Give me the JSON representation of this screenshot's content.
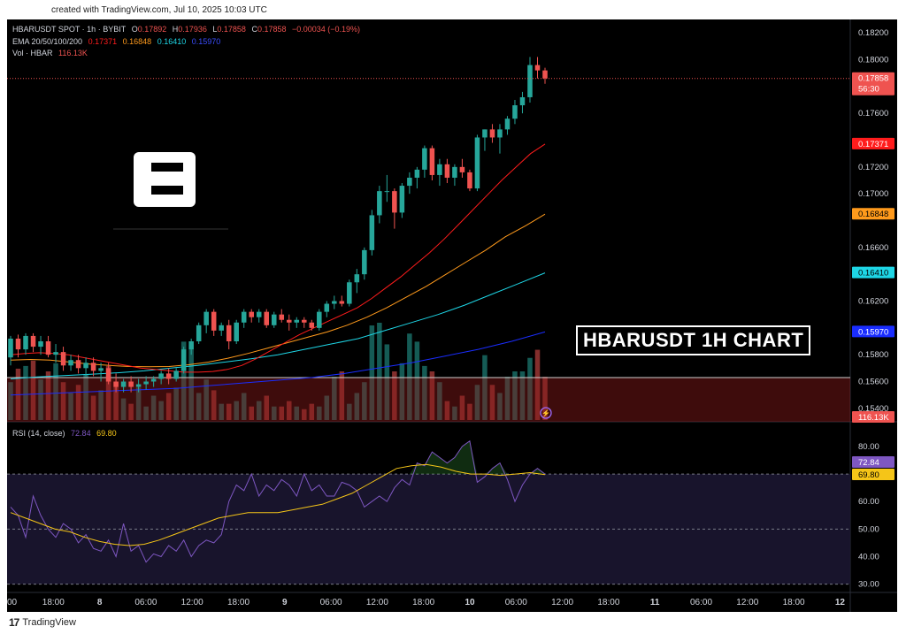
{
  "header": {
    "created_note": "created with TradingView.com, Jul 10, 2025 10:03 UTC"
  },
  "footer": {
    "brand": "TradingView"
  },
  "overlay_title": "HBARUSDT 1H CHART",
  "legend": {
    "symbol": "HBARUSDT SPOT · 1h · BYBIT",
    "o_label": "O",
    "o": "0.17892",
    "h_label": "H",
    "h": "0.17936",
    "l_label": "L",
    "l": "0.17858",
    "c_label": "C",
    "c": "0.17858",
    "change": "−0.00034 (−0.19%)",
    "ema_label": "EMA 20/50/100/200",
    "ema20": "0.17371",
    "ema50": "0.16848",
    "ema100": "0.16410",
    "ema200": "0.15970",
    "vol_label": "Vol · HBAR",
    "vol": "116.13K",
    "rsi_label": "RSI (14, close)",
    "rsi": "72.84",
    "rsi_ma": "69.80"
  },
  "price_axis": {
    "ticks": [
      "0.18200",
      "0.18000",
      "0.17600",
      "0.17200",
      "0.17000",
      "0.16600",
      "0.16200",
      "0.15800",
      "0.15600",
      "0.15400"
    ],
    "last_price_tag": "0.17858",
    "countdown": "56:30",
    "ema_tags": [
      {
        "text": "0.17371",
        "color": "#ff1c1c"
      },
      {
        "text": "0.16848",
        "color": "#ff9a1c"
      },
      {
        "text": "0.16410",
        "color": "#1ed6e6"
      },
      {
        "text": "0.15970",
        "color": "#1a2dff"
      }
    ],
    "vol_tag": "116.13K"
  },
  "rsi_axis": {
    "ticks": [
      "80.00",
      "60.00",
      "50.00",
      "40.00",
      "30.00"
    ],
    "rsi_tag": "72.84",
    "rsi_ma_tag": "69.80"
  },
  "time_axis": {
    "labels": [
      "00",
      "18:00",
      "8",
      "06:00",
      "12:00",
      "18:00",
      "9",
      "06:00",
      "12:00",
      "18:00",
      "10",
      "06:00",
      "12:00",
      "18:00",
      "11",
      "06:00",
      "12:00",
      "18:00",
      "12"
    ]
  },
  "colors": {
    "up": "#26a69a",
    "down": "#ef5350",
    "ema20": "#ff1c1c",
    "ema50": "#ff9a1c",
    "ema100": "#1ed6e6",
    "ema200": "#1a2dff",
    "rsi": "#7e57c2",
    "rsi_ma": "#f5c518"
  },
  "chart_data": {
    "type": "candlestick",
    "title": "HBARUSDT 1H CHART",
    "ylim": [
      0.153,
      0.183
    ],
    "candles": [
      [
        0.1578,
        0.1594,
        0.1572,
        0.1592
      ],
      [
        0.1592,
        0.1595,
        0.1578,
        0.1584
      ],
      [
        0.1584,
        0.1596,
        0.158,
        0.1594
      ],
      [
        0.1594,
        0.1596,
        0.1582,
        0.1586
      ],
      [
        0.1586,
        0.1594,
        0.158,
        0.159
      ],
      [
        0.159,
        0.1594,
        0.1578,
        0.158
      ],
      [
        0.158,
        0.1588,
        0.1574,
        0.1582
      ],
      [
        0.1582,
        0.1586,
        0.1568,
        0.1572
      ],
      [
        0.1572,
        0.158,
        0.1568,
        0.1576
      ],
      [
        0.1576,
        0.158,
        0.1566,
        0.157
      ],
      [
        0.157,
        0.1578,
        0.1564,
        0.1574
      ],
      [
        0.1574,
        0.1578,
        0.1564,
        0.1568
      ],
      [
        0.1568,
        0.1574,
        0.156,
        0.157
      ],
      [
        0.157,
        0.1574,
        0.1558,
        0.156
      ],
      [
        0.156,
        0.1566,
        0.1552,
        0.1556
      ],
      [
        0.1556,
        0.1562,
        0.1552,
        0.156
      ],
      [
        0.156,
        0.1564,
        0.1552,
        0.1556
      ],
      [
        0.1556,
        0.1562,
        0.1552,
        0.1558
      ],
      [
        0.1558,
        0.1564,
        0.1554,
        0.156
      ],
      [
        0.156,
        0.1564,
        0.1556,
        0.1562
      ],
      [
        0.1562,
        0.1568,
        0.1558,
        0.1566
      ],
      [
        0.1566,
        0.157,
        0.1558,
        0.1562
      ],
      [
        0.1562,
        0.157,
        0.156,
        0.1568
      ],
      [
        0.1568,
        0.1586,
        0.1566,
        0.1584
      ],
      [
        0.1584,
        0.1592,
        0.158,
        0.159
      ],
      [
        0.159,
        0.1604,
        0.1588,
        0.1602
      ],
      [
        0.1602,
        0.1614,
        0.1596,
        0.1612
      ],
      [
        0.1612,
        0.1614,
        0.1594,
        0.1598
      ],
      [
        0.1598,
        0.1604,
        0.1594,
        0.1602
      ],
      [
        0.1602,
        0.1606,
        0.1584,
        0.159
      ],
      [
        0.159,
        0.1606,
        0.1588,
        0.1604
      ],
      [
        0.1604,
        0.1614,
        0.16,
        0.1612
      ],
      [
        0.1612,
        0.1614,
        0.1604,
        0.1608
      ],
      [
        0.1608,
        0.1614,
        0.1604,
        0.1612
      ],
      [
        0.1612,
        0.1614,
        0.16,
        0.1602
      ],
      [
        0.1602,
        0.1612,
        0.16,
        0.161
      ],
      [
        0.161,
        0.1614,
        0.1604,
        0.1606
      ],
      [
        0.1606,
        0.161,
        0.1598,
        0.1604
      ],
      [
        0.1604,
        0.1608,
        0.16,
        0.1606
      ],
      [
        0.1606,
        0.1608,
        0.16,
        0.1604
      ],
      [
        0.1604,
        0.1606,
        0.1598,
        0.16
      ],
      [
        0.16,
        0.1614,
        0.1598,
        0.1612
      ],
      [
        0.1612,
        0.162,
        0.1608,
        0.1618
      ],
      [
        0.1618,
        0.1624,
        0.1614,
        0.162
      ],
      [
        0.162,
        0.1624,
        0.1616,
        0.1618
      ],
      [
        0.1618,
        0.1636,
        0.1616,
        0.1634
      ],
      [
        0.1634,
        0.1644,
        0.1626,
        0.164
      ],
      [
        0.164,
        0.166,
        0.1636,
        0.1658
      ],
      [
        0.1658,
        0.1688,
        0.1654,
        0.1684
      ],
      [
        0.1684,
        0.1706,
        0.1678,
        0.1702
      ],
      [
        0.1702,
        0.1714,
        0.1694,
        0.1702
      ],
      [
        0.1702,
        0.1704,
        0.1674,
        0.1686
      ],
      [
        0.1686,
        0.1708,
        0.1682,
        0.1706
      ],
      [
        0.1706,
        0.1716,
        0.17,
        0.1712
      ],
      [
        0.1712,
        0.172,
        0.1704,
        0.1718
      ],
      [
        0.1718,
        0.1736,
        0.1712,
        0.1734
      ],
      [
        0.1734,
        0.1736,
        0.171,
        0.1714
      ],
      [
        0.1714,
        0.1726,
        0.1706,
        0.1722
      ],
      [
        0.1722,
        0.1726,
        0.1708,
        0.1712
      ],
      [
        0.1712,
        0.1722,
        0.1706,
        0.172
      ],
      [
        0.172,
        0.1726,
        0.1712,
        0.1716
      ],
      [
        0.1716,
        0.1718,
        0.1702,
        0.1704
      ],
      [
        0.1704,
        0.1744,
        0.1702,
        0.1742
      ],
      [
        0.1742,
        0.1748,
        0.1732,
        0.1748
      ],
      [
        0.1748,
        0.1752,
        0.1738,
        0.1742
      ],
      [
        0.1742,
        0.1752,
        0.173,
        0.1748
      ],
      [
        0.1748,
        0.1758,
        0.1744,
        0.1756
      ],
      [
        0.1756,
        0.177,
        0.1752,
        0.1766
      ],
      [
        0.1766,
        0.1776,
        0.176,
        0.1772
      ],
      [
        0.1772,
        0.1802,
        0.1768,
        0.1796
      ],
      [
        0.1796,
        0.1802,
        0.1786,
        0.1792
      ],
      [
        0.1792,
        0.1794,
        0.1782,
        0.1786
      ]
    ],
    "volume": [
      28,
      38,
      40,
      44,
      30,
      36,
      42,
      28,
      20,
      26,
      34,
      18,
      22,
      40,
      28,
      16,
      12,
      24,
      10,
      18,
      14,
      20,
      24,
      58,
      56,
      20,
      30,
      22,
      12,
      12,
      14,
      20,
      10,
      14,
      18,
      10,
      10,
      14,
      10,
      8,
      12,
      10,
      18,
      32,
      36,
      12,
      20,
      28,
      70,
      72,
      56,
      36,
      42,
      64,
      58,
      40,
      36,
      28,
      14,
      10,
      18,
      12,
      26,
      48,
      26,
      20,
      32,
      36,
      36,
      46,
      52,
      32
    ],
    "ema20": [
      0.158,
      0.1581,
      0.15815,
      0.1581,
      0.158,
      0.1578,
      0.1576,
      0.1574,
      0.1572,
      0.157,
      0.1569,
      0.1568,
      0.1567,
      0.1567,
      0.15675,
      0.1569,
      0.1572,
      0.1577,
      0.1583,
      0.1589,
      0.1595,
      0.16,
      0.1605,
      0.161,
      0.1615,
      0.1622,
      0.163,
      0.1638,
      0.1647,
      0.1656,
      0.1666,
      0.1677,
      0.1688,
      0.1699,
      0.171,
      0.172,
      0.173,
      0.17371
    ],
    "ema50": [
      0.1576,
      0.15765,
      0.1576,
      0.15745,
      0.1573,
      0.1572,
      0.15712,
      0.1571,
      0.15712,
      0.15725,
      0.15745,
      0.15775,
      0.1581,
      0.1585,
      0.1589,
      0.1593,
      0.1597,
      0.1602,
      0.1608,
      0.1615,
      0.1623,
      0.1631,
      0.164,
      0.1649,
      0.1658,
      0.1668,
      0.1676,
      0.16848
    ],
    "ema100": [
      0.1562,
      0.15635,
      0.15645,
      0.15655,
      0.15665,
      0.1568,
      0.157,
      0.1572,
      0.15745,
      0.1577,
      0.158,
      0.1584,
      0.1588,
      0.1592,
      0.1598,
      0.1604,
      0.161,
      0.1617,
      0.1625,
      0.1633,
      0.1641
    ],
    "ema200": [
      0.155,
      0.1551,
      0.1552,
      0.1553,
      0.1554,
      0.1555,
      0.1557,
      0.1559,
      0.1561,
      0.1563,
      0.1566,
      0.157,
      0.1574,
      0.1579,
      0.1584,
      0.159,
      0.1597
    ],
    "rsi": [
      58,
      55,
      47,
      62,
      55,
      50,
      47,
      52,
      50,
      45,
      48,
      43,
      42,
      46,
      40,
      52,
      42,
      44,
      38,
      41,
      40,
      44,
      42,
      46,
      40,
      44,
      46,
      45,
      48,
      60,
      66,
      64,
      70,
      62,
      66,
      64,
      68,
      66,
      62,
      70,
      64,
      66,
      62,
      62,
      67,
      66,
      64,
      58,
      60,
      62,
      60,
      65,
      68,
      66,
      74,
      73,
      78,
      76,
      74,
      76,
      80,
      82,
      67,
      69,
      72,
      74,
      68,
      60,
      66,
      70,
      72,
      70
    ],
    "rsi_ma": [
      56,
      54,
      52,
      50,
      49,
      47,
      45.5,
      44.5,
      44,
      44.5,
      46,
      48,
      50,
      52,
      54,
      55,
      56,
      56,
      56,
      57,
      58,
      59,
      61,
      63,
      66,
      69,
      72,
      73,
      73.5,
      72.5,
      71,
      70,
      70,
      69.5,
      70,
      70.5,
      69.8
    ],
    "rsi_ylim": [
      27,
      88
    ]
  }
}
